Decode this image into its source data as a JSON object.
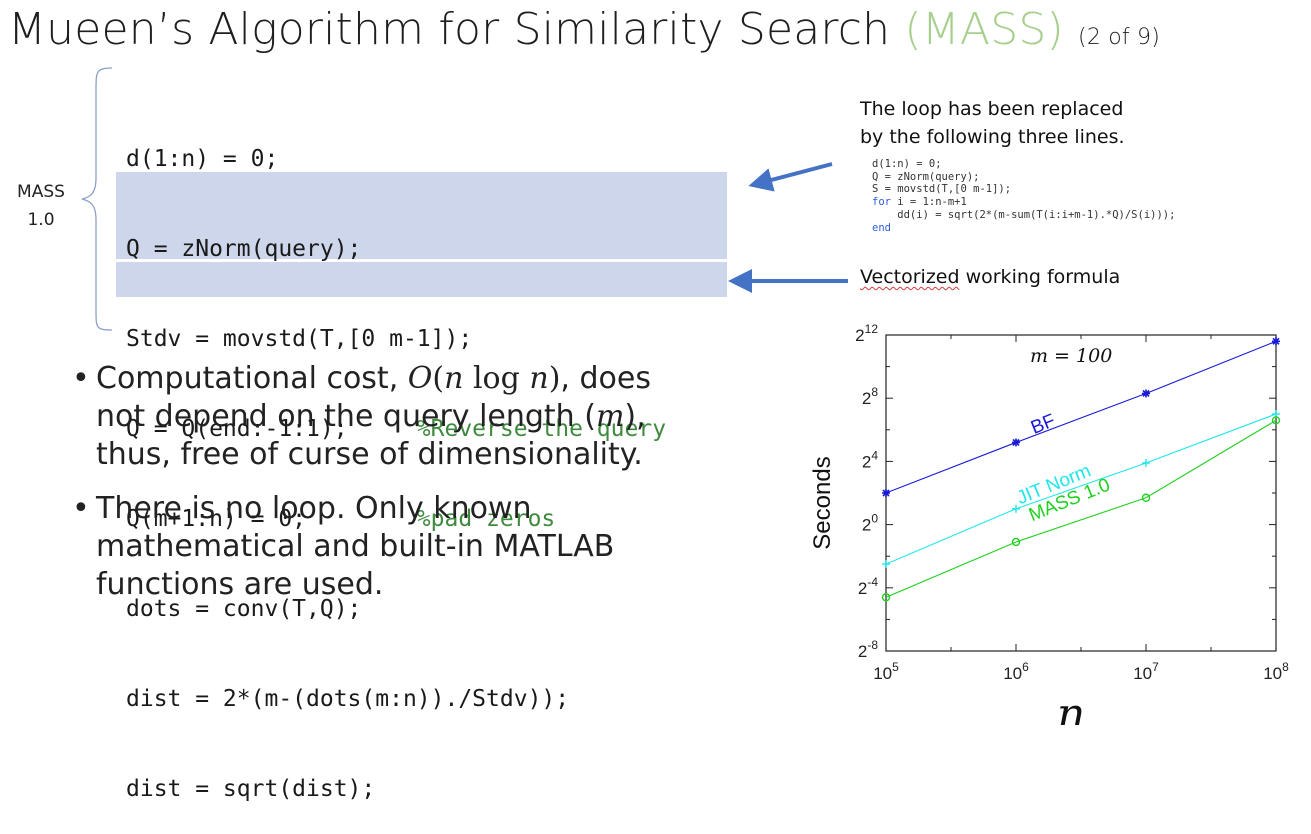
{
  "slide": {
    "title_main": "Mueen’s Algorithm for Similarity Search ",
    "title_accent": "(MASS)",
    "title_part": "(2 of 9)",
    "mass_label_line1": "MASS",
    "mass_label_line2": "1.0",
    "code_lines": [
      {
        "code": "d(1:n) = 0;",
        "comment": ""
      },
      {
        "code": "Q = zNorm(query);",
        "comment": ""
      },
      {
        "code": "Stdv = movstd(T,[0 m-1]);",
        "comment": ""
      },
      {
        "code": "Q = Q(end:-1:1);     ",
        "comment": "%Reverse the query"
      },
      {
        "code": "Q(m+1:n) = 0;        ",
        "comment": "%pad zeros"
      },
      {
        "code": "dots = conv(T,Q);",
        "comment": ""
      },
      {
        "code": "dist = 2*(m-(dots(m:n))./Stdv));",
        "comment": ""
      },
      {
        "code": "dist = sqrt(dist);",
        "comment": ""
      }
    ],
    "note_line1": "The loop has been replaced",
    "note_line2": "by the following three lines.",
    "loop_code": [
      {
        "kw": "",
        "text": "d(1:n) = 0;"
      },
      {
        "kw": "",
        "text": "Q = zNorm(query);"
      },
      {
        "kw": "",
        "text": "S = movstd(T,[0 m-1]);"
      },
      {
        "kw": "for",
        "text": " i = 1:n-m+1"
      },
      {
        "kw": "",
        "text": "    dd(i) = sqrt(2*(m-sum(T(i:i+m-1).*Q)/S(i)));"
      },
      {
        "kw": "end",
        "text": ""
      }
    ],
    "vectorized_word": "Vectorized",
    "vectorized_rest": " working formula",
    "bullet1_a": "Computational cost, ",
    "bullet1_math_O": "O",
    "bullet1_math_open": "(",
    "bullet1_math_n": "n",
    "bullet1_math_log": " log ",
    "bullet1_math_n2": "n",
    "bullet1_math_close": ")",
    "bullet1_b": ", does not depend on the query length (",
    "bullet1_m": "m",
    "bullet1_c": "), thus, free of curse of dimensionality.",
    "bullet2": "There is no loop. Only known mathematical and built-in MATLAB functions are used."
  },
  "chart_data": {
    "type": "line",
    "xlabel": "n",
    "ylabel": "Seconds",
    "annotation": "m = 100",
    "x_scale": "log2-of-log10",
    "x": [
      100000,
      1000000,
      10000000,
      100000000
    ],
    "x_tick_labels": [
      {
        "base": "10",
        "exp": "5"
      },
      {
        "base": "10",
        "exp": "6"
      },
      {
        "base": "10",
        "exp": "7"
      },
      {
        "base": "10",
        "exp": "8"
      }
    ],
    "y_scale": "log2",
    "y_exp_range": [
      -8,
      12
    ],
    "y_tick_labels": [
      {
        "base": "2",
        "exp": "12"
      },
      {
        "base": "2",
        "exp": "8"
      },
      {
        "base": "2",
        "exp": "4"
      },
      {
        "base": "2",
        "exp": "0"
      },
      {
        "base": "2",
        "exp": "-4"
      },
      {
        "base": "2",
        "exp": "-8"
      }
    ],
    "y_tick_exps": [
      12,
      8,
      4,
      0,
      -4,
      -8
    ],
    "grid": false,
    "series": [
      {
        "name": "BF",
        "color": "#1a1ad6",
        "marker": "star",
        "log2_values": [
          2,
          5.2,
          8.3,
          11.6
        ]
      },
      {
        "name": "JIT Norm",
        "color": "#1ee6ea",
        "marker": "plus",
        "log2_values": [
          -2.5,
          1,
          3.9,
          7
        ]
      },
      {
        "name": "MASS 1.0",
        "color": "#22d022",
        "marker": "circle",
        "log2_values": [
          -4.6,
          -1.1,
          1.7,
          6.6
        ]
      }
    ]
  }
}
